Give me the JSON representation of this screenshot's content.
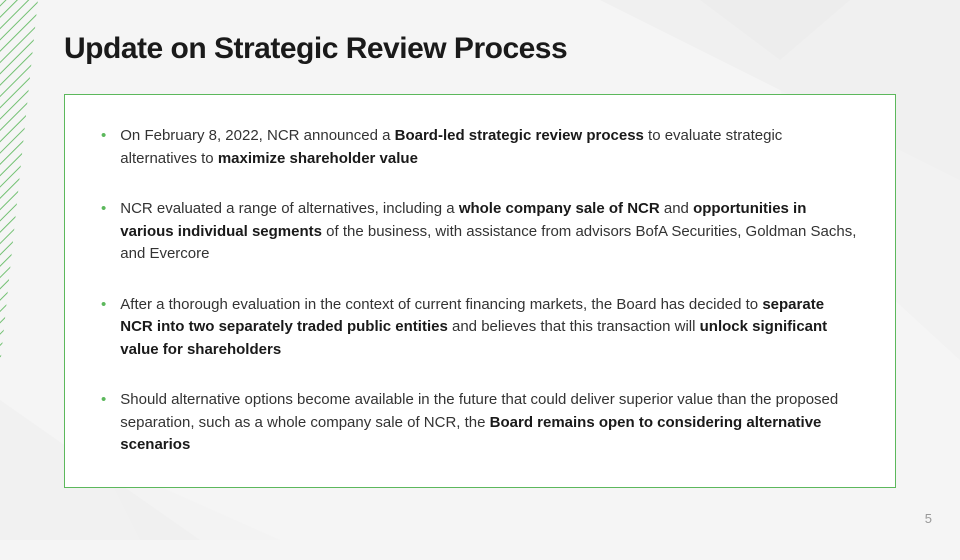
{
  "title": "Update on Strategic Review Process",
  "page_number": "5",
  "colors": {
    "accent": "#5cb85c",
    "background": "#f5f5f5",
    "box_border": "#5cb85c",
    "box_bg": "#ffffff",
    "text": "#333333",
    "title": "#1a1a1a",
    "page_num": "#999999",
    "triangle_light": "#ebebeb",
    "triangle_lighter": "#f0f0f0"
  },
  "bullets": [
    {
      "segments": [
        {
          "text": "On February 8, 2022, NCR announced a ",
          "bold": false
        },
        {
          "text": "Board-led strategic review process",
          "bold": true
        },
        {
          "text": " to evaluate strategic alternatives to ",
          "bold": false
        },
        {
          "text": "maximize shareholder value",
          "bold": true
        }
      ]
    },
    {
      "segments": [
        {
          "text": "NCR evaluated a range of alternatives, including a ",
          "bold": false
        },
        {
          "text": "whole company sale of NCR",
          "bold": true
        },
        {
          "text": " and ",
          "bold": false
        },
        {
          "text": "opportunities in various individual segments",
          "bold": true
        },
        {
          "text": " of the business, with assistance from advisors BofA Securities, Goldman Sachs, and Evercore",
          "bold": false
        }
      ]
    },
    {
      "segments": [
        {
          "text": "After a thorough evaluation in the context of current financing markets, the Board has decided to ",
          "bold": false
        },
        {
          "text": "separate NCR into two separately traded public entities",
          "bold": true
        },
        {
          "text": " and believes that this transaction will ",
          "bold": false
        },
        {
          "text": "unlock significant value for shareholders",
          "bold": true
        }
      ]
    },
    {
      "segments": [
        {
          "text": "Should alternative options become available in the future that could deliver superior value than the proposed separation, such as a whole company sale of NCR, the ",
          "bold": false
        },
        {
          "text": "Board remains open to considering alternative scenarios",
          "bold": true
        }
      ]
    }
  ]
}
